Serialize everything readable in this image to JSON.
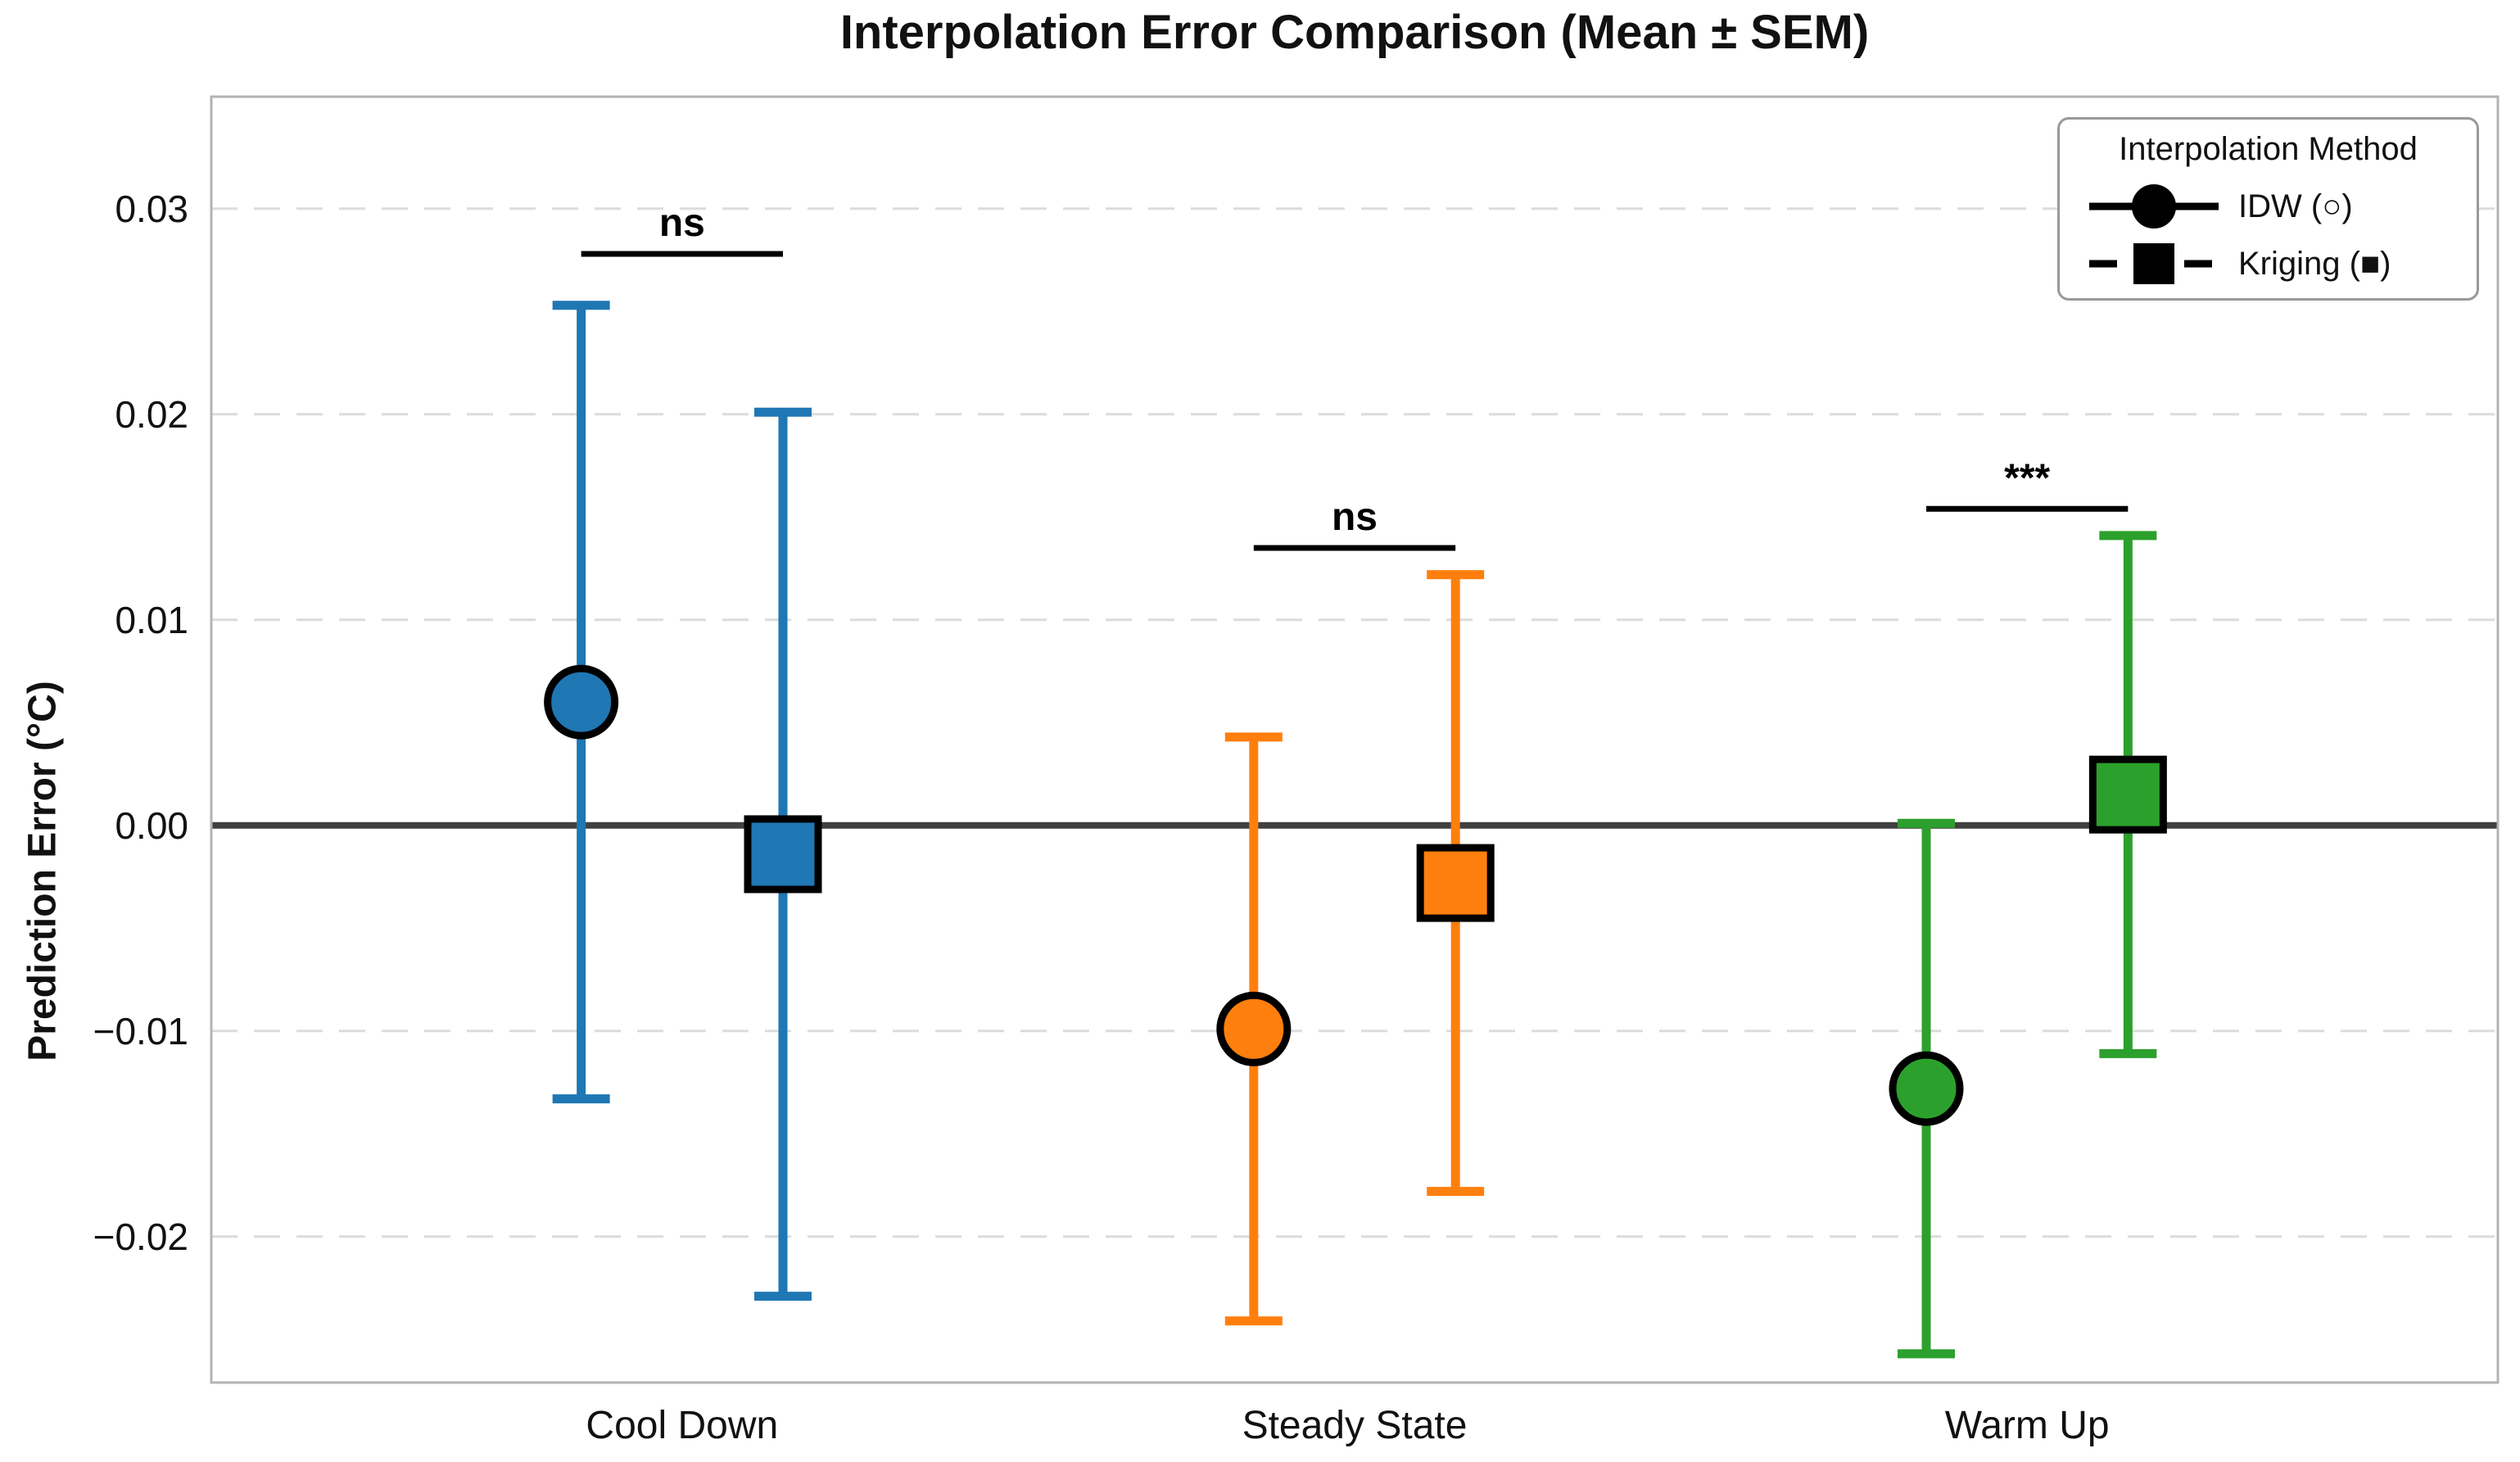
{
  "chart_data": {
    "type": "errorbar",
    "title": "Interpolation Error Comparison (Mean ± SEM)",
    "xlabel": "",
    "ylabel": "Prediction Error (°C)",
    "categories": [
      "Cool Down",
      "Steady State",
      "Warm Up"
    ],
    "category_colors": [
      "#1f77b4",
      "#ff7f0e",
      "#2ca02c"
    ],
    "yticks": [
      0.03,
      0.02,
      0.01,
      0.0,
      -0.01,
      -0.02
    ],
    "ytick_labels": [
      "0.03",
      "0.02",
      "0.01",
      "0.00",
      "−0.01",
      "−0.02"
    ],
    "ylim": [
      -0.0271,
      0.03545
    ],
    "grid": "horizontal dashed lines at each y tick",
    "zero_line": {
      "value": 0.0,
      "color": "#404040"
    },
    "series": [
      {
        "name": "IDW (○)",
        "marker": "circle",
        "means": [
          0.006,
          -0.0099,
          -0.0128
        ],
        "sems": [
          0.0193,
          0.0142,
          0.0129
        ]
      },
      {
        "name": "Kriging (■)",
        "marker": "square",
        "means": [
          -0.0014,
          -0.0028,
          0.0015
        ],
        "sems": [
          0.0215,
          0.015,
          0.0126
        ]
      }
    ],
    "annotations": [
      {
        "category": "Cool Down",
        "label": "ns",
        "bracket_y": 0.0278
      },
      {
        "category": "Steady State",
        "label": "ns",
        "bracket_y": 0.0135
      },
      {
        "category": "Warm Up",
        "label": "***",
        "bracket_y": 0.0154
      }
    ],
    "legend": {
      "title": "Interpolation Method",
      "position": "upper right",
      "items": [
        {
          "label": "IDW (○)",
          "marker": "circle",
          "line": "solid"
        },
        {
          "label": "Kriging (■)",
          "marker": "square",
          "line": "dashed"
        }
      ]
    }
  },
  "style_colors": {
    "grid": "#dcdcdc",
    "spine": "#b3b3b3",
    "zero_line": "#404040",
    "text": "#111111",
    "marker_edge": "#000000",
    "annotation": "#000000"
  }
}
